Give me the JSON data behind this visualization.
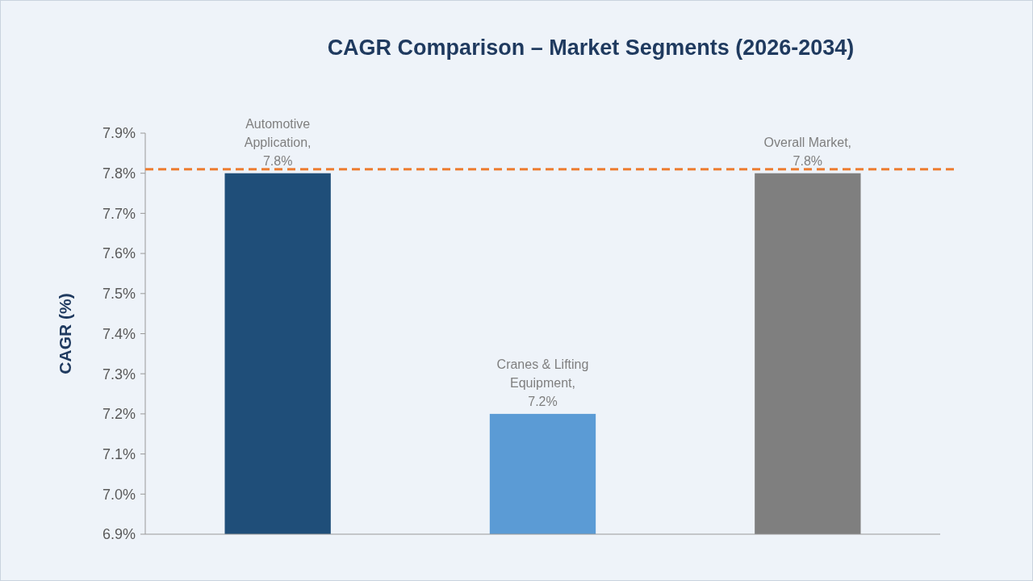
{
  "chart_data": {
    "type": "bar",
    "title": "CAGR Comparison – Market Segments (2026-2034)",
    "ylabel": "CAGR (%)",
    "categories": [
      null,
      null,
      null
    ],
    "values": [
      7.8,
      7.2,
      7.8
    ],
    "colors": [
      "#1f4e79",
      "#5b9bd5",
      "#7f7f7f"
    ],
    "value_labels": [
      "Automotive Application, 7.8%",
      "Cranes & Lifting Equipment, 7.2%",
      "Overall Market, 7.8%"
    ],
    "ylim": [
      6.9,
      7.9
    ],
    "yticks": [
      {
        "value": 6.9,
        "label": "6.9%"
      },
      {
        "value": 7.0,
        "label": "7.0%"
      },
      {
        "value": 7.1,
        "label": "7.1%"
      },
      {
        "value": 7.2,
        "label": "7.2%"
      },
      {
        "value": 7.3,
        "label": "7.3%"
      },
      {
        "value": 7.4,
        "label": "7.4%"
      },
      {
        "value": 7.5,
        "label": "7.5%"
      },
      {
        "value": 7.6,
        "label": "7.6%"
      },
      {
        "value": 7.7,
        "label": "7.7%"
      },
      {
        "value": 7.8,
        "label": "7.8%"
      },
      {
        "value": 7.9,
        "label": "7.9%"
      }
    ],
    "ref_lines": [
      {
        "axis": "y",
        "value": 7.81,
        "color": "#ed7d31",
        "line_style": "dashed"
      }
    ],
    "grid": false
  }
}
